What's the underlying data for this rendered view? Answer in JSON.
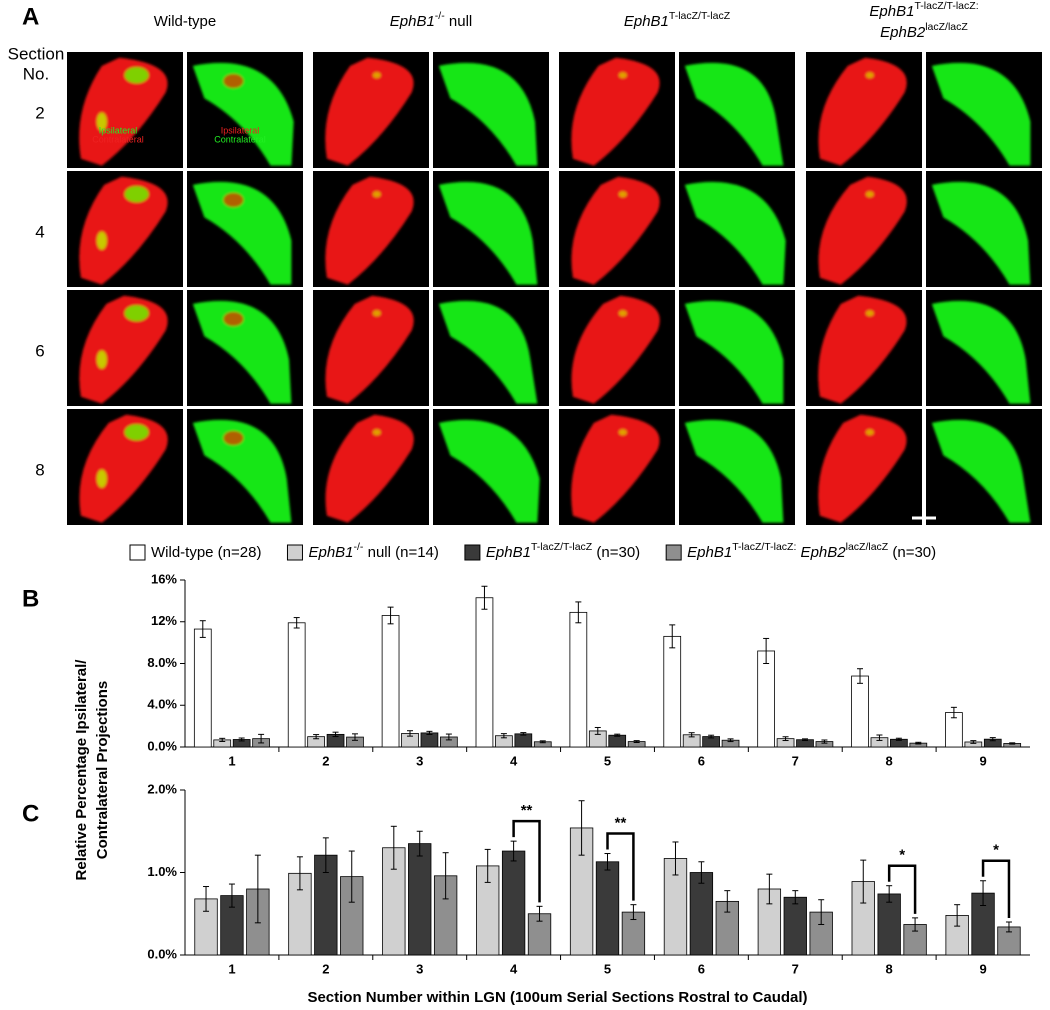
{
  "panel_a": {
    "letter": "A",
    "row_header": [
      "Section",
      "No."
    ],
    "rows": [
      "2",
      "4",
      "6",
      "8"
    ],
    "columns": [
      [
        [
          {
            "text": "Wild-type"
          }
        ]
      ],
      [
        [
          {
            "text": "EphB1",
            "style": "i"
          },
          {
            "text": "-/-",
            "style": "sup"
          },
          {
            "text": " null"
          }
        ]
      ],
      [
        [
          {
            "text": "EphB1",
            "style": "i"
          },
          {
            "text": "T-lacZ/T-lacZ",
            "style": "sup"
          }
        ]
      ],
      [
        [
          {
            "text": "EphB1",
            "style": "i"
          },
          {
            "text": "T-lacZ/T-lacZ:",
            "style": "sup"
          }
        ],
        [
          {
            "text": "EphB2",
            "style": "i"
          },
          {
            "text": "lacZ/lacZ",
            "style": "sup"
          }
        ]
      ]
    ],
    "inset_left": [
      {
        "text": "Ipsilateral",
        "color": "#22ee22"
      },
      {
        "text": "Contralateral",
        "color": "#ee2222"
      }
    ],
    "inset_right": [
      {
        "text": "Ipsilateral",
        "color": "#ee2222"
      },
      {
        "text": "Contralateral",
        "color": "#22ee22"
      }
    ]
  },
  "y_label_lines": [
    "Relative Percentage Ipsilateral/",
    "Contralateral Projections"
  ],
  "chart_data": [
    {
      "type": "bar",
      "letter": "B",
      "categories": [
        "1",
        "2",
        "3",
        "4",
        "5",
        "6",
        "7",
        "8",
        "9"
      ],
      "ylim": [
        0,
        16
      ],
      "yticks": [
        {
          "value": 0,
          "label": "0.0%"
        },
        {
          "value": 4,
          "label": "4.0%"
        },
        {
          "value": 8,
          "label": "8.0%"
        },
        {
          "value": 12,
          "label": "12%"
        },
        {
          "value": 16,
          "label": "16%"
        }
      ],
      "edgecolor": "#000000",
      "legend": "top",
      "series": [
        {
          "name_parts": [
            {
              "text": "Wild-type (n=28)"
            }
          ],
          "color": "#ffffff",
          "values": [
            11.3,
            11.9,
            12.6,
            14.3,
            12.9,
            10.6,
            9.2,
            6.8,
            3.3
          ],
          "errors": [
            0.8,
            0.5,
            0.8,
            1.1,
            1.0,
            1.1,
            1.2,
            0.7,
            0.5
          ]
        },
        {
          "name_parts": [
            {
              "text": "EphB1",
              "style": "i"
            },
            {
              "text": "-/-",
              "style": "sup"
            },
            {
              "text": " null (n=14)"
            }
          ],
          "color": "#d0d0d0",
          "values": [
            0.68,
            0.99,
            1.3,
            1.08,
            1.54,
            1.17,
            0.8,
            0.89,
            0.48
          ],
          "errors": [
            0.15,
            0.2,
            0.26,
            0.2,
            0.33,
            0.2,
            0.18,
            0.26,
            0.13
          ]
        },
        {
          "name_parts": [
            {
              "text": "EphB1",
              "style": "i"
            },
            {
              "text": "T-lacZ/T-lacZ",
              "style": "sup"
            },
            {
              "text": " (n=30)"
            }
          ],
          "color": "#3a3a3a",
          "values": [
            0.72,
            1.21,
            1.35,
            1.26,
            1.13,
            1.0,
            0.7,
            0.74,
            0.75
          ],
          "errors": [
            0.14,
            0.21,
            0.15,
            0.12,
            0.1,
            0.13,
            0.08,
            0.1,
            0.15
          ]
        },
        {
          "name_parts": [
            {
              "text": "EphB1",
              "style": "i"
            },
            {
              "text": "T-lacZ/T-lacZ:",
              "style": "sup"
            },
            {
              "text": " EphB2",
              "style": "i"
            },
            {
              "text": "lacZ/lacZ",
              "style": "sup"
            },
            {
              "text": " (n=30)"
            }
          ],
          "color": "#8f8f8f",
          "values": [
            0.8,
            0.95,
            0.96,
            0.5,
            0.52,
            0.65,
            0.52,
            0.37,
            0.34
          ],
          "errors": [
            0.41,
            0.31,
            0.28,
            0.09,
            0.09,
            0.13,
            0.15,
            0.08,
            0.06
          ]
        }
      ]
    },
    {
      "type": "bar",
      "letter": "C",
      "categories": [
        "1",
        "2",
        "3",
        "4",
        "5",
        "6",
        "7",
        "8",
        "9"
      ],
      "ylim": [
        0,
        2
      ],
      "yticks": [
        {
          "value": 0,
          "label": "0.0%"
        },
        {
          "value": 1,
          "label": "1.0%"
        },
        {
          "value": 2,
          "label": "2.0%"
        }
      ],
      "edgecolor": "#000000",
      "x_label": "Section Number within LGN (100um Serial Sections Rostral to Caudal)",
      "series": [
        {
          "color": "#d0d0d0",
          "values": [
            0.68,
            0.99,
            1.3,
            1.08,
            1.54,
            1.17,
            0.8,
            0.89,
            0.48
          ],
          "errors": [
            0.15,
            0.2,
            0.26,
            0.2,
            0.33,
            0.2,
            0.18,
            0.26,
            0.13
          ]
        },
        {
          "color": "#3a3a3a",
          "values": [
            0.72,
            1.21,
            1.35,
            1.26,
            1.13,
            1.0,
            0.7,
            0.74,
            0.75
          ],
          "errors": [
            0.14,
            0.21,
            0.15,
            0.12,
            0.1,
            0.13,
            0.08,
            0.1,
            0.15
          ]
        },
        {
          "color": "#8f8f8f",
          "values": [
            0.8,
            0.95,
            0.96,
            0.5,
            0.52,
            0.65,
            0.52,
            0.37,
            0.34
          ],
          "errors": [
            0.41,
            0.31,
            0.28,
            0.09,
            0.09,
            0.13,
            0.15,
            0.08,
            0.06
          ]
        }
      ],
      "annotations": [
        {
          "text": "**",
          "category": "4"
        },
        {
          "text": "**",
          "category": "5"
        },
        {
          "text": "*",
          "category": "8"
        },
        {
          "text": "*",
          "category": "9"
        }
      ]
    }
  ]
}
